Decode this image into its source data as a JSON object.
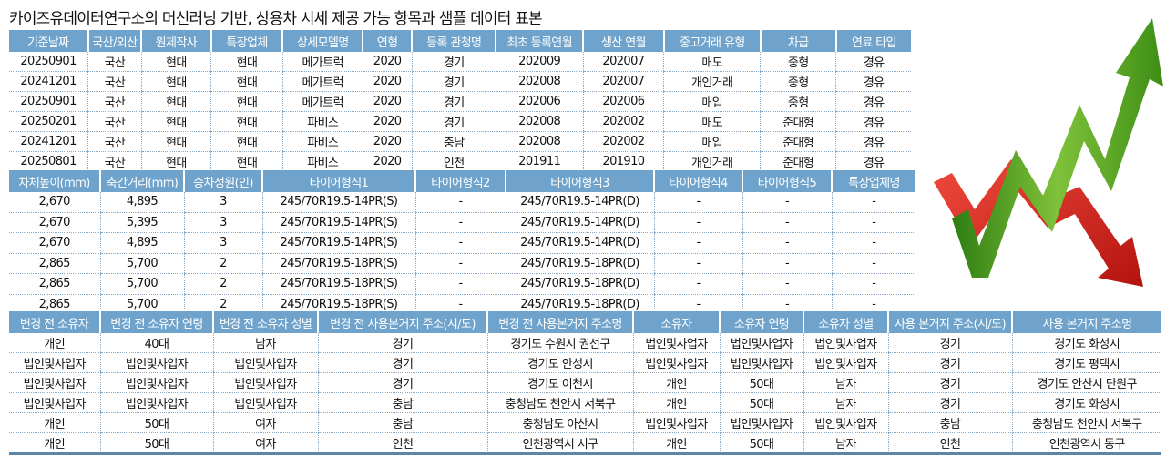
{
  "title": "카이즈유데이터연구소의 머신러닝 기반, 상용차 시세 제공 가능 항목과 샘플 데이터 표본",
  "colors": {
    "header_bg": "#6fa3cb",
    "up_arrow": "#5ca61e",
    "down_arrow": "#d9231c"
  },
  "graphic": {
    "icon": "up-down-zigzag-arrows"
  },
  "tables": [
    {
      "headers": [
        "기준날짜",
        "국산/외산",
        "원제작사",
        "특장업체",
        "상세모델명",
        "연형",
        "등록 관청명",
        "최초 등록연월",
        "생산 연월",
        "중고거래 유형",
        "차급",
        "연료 타입"
      ],
      "rows": [
        [
          "20250901",
          "국산",
          "현대",
          "현대",
          "메가트럭",
          "2020",
          "경기",
          "202009",
          "202007",
          "매도",
          "중형",
          "경유"
        ],
        [
          "20241201",
          "국산",
          "현대",
          "현대",
          "메가트럭",
          "2020",
          "경기",
          "202008",
          "202007",
          "개인거래",
          "중형",
          "경유"
        ],
        [
          "20250901",
          "국산",
          "현대",
          "현대",
          "메가트럭",
          "2020",
          "경기",
          "202006",
          "202006",
          "매입",
          "중형",
          "경유"
        ],
        [
          "20250201",
          "국산",
          "현대",
          "현대",
          "파비스",
          "2020",
          "경기",
          "202008",
          "202002",
          "매도",
          "준대형",
          "경유"
        ],
        [
          "20241201",
          "국산",
          "현대",
          "현대",
          "파비스",
          "2020",
          "충남",
          "202008",
          "202002",
          "매입",
          "준대형",
          "경유"
        ],
        [
          "20250801",
          "국산",
          "현대",
          "현대",
          "파비스",
          "2020",
          "인천",
          "201911",
          "201910",
          "개인거래",
          "준대형",
          "경유"
        ]
      ]
    },
    {
      "headers": [
        "차체높이(mm)",
        "축간거리(mm)",
        "승차정원(인)",
        "타이어형식1",
        "타이어형식2",
        "타이어형식3",
        "타이어형식4",
        "타이어형식5",
        "특장업체명"
      ],
      "rows": [
        [
          "2,670",
          "4,895",
          "3",
          "245/70R19.5-14PR(S)",
          "-",
          "245/70R19.5-14PR(D)",
          "-",
          "-",
          "-"
        ],
        [
          "2,670",
          "5,395",
          "3",
          "245/70R19.5-14PR(S)",
          "-",
          "245/70R19.5-14PR(D)",
          "-",
          "-",
          "-"
        ],
        [
          "2,670",
          "4,895",
          "3",
          "245/70R19.5-14PR(S)",
          "-",
          "245/70R19.5-14PR(D)",
          "-",
          "-",
          "-"
        ],
        [
          "2,865",
          "5,700",
          "2",
          "245/70R19.5-18PR(S)",
          "-",
          "245/70R19.5-18PR(D)",
          "-",
          "-",
          "-"
        ],
        [
          "2,865",
          "5,700",
          "2",
          "245/70R19.5-18PR(S)",
          "-",
          "245/70R19.5-18PR(D)",
          "-",
          "-",
          "-"
        ],
        [
          "2,865",
          "5,700",
          "2",
          "245/70R19.5-18PR(S)",
          "-",
          "245/70R19.5-18PR(D)",
          "-",
          "-",
          "-"
        ]
      ]
    },
    {
      "headers": [
        "변경 전 소유자",
        "변경 전 소유자 연령",
        "변경 전 소유자 성별",
        "변경 전 사용본거지 주소(시/도)",
        "변경 전 사용본거지 주소명",
        "소유자",
        "소유자 연령",
        "소유자 성별",
        "사용 본거지 주소(시/도)",
        "사용 본거지 주소명"
      ],
      "rows": [
        [
          "개인",
          "40대",
          "남자",
          "경기",
          "경기도 수원시 권선구",
          "법인및사업자",
          "법인및사업자",
          "법인및사업자",
          "경기",
          "경기도 화성시"
        ],
        [
          "법인및사업자",
          "법인및사업자",
          "법인및사업자",
          "경기",
          "경기도 안성시",
          "법인및사업자",
          "법인및사업자",
          "법인및사업자",
          "경기",
          "경기도 평택시"
        ],
        [
          "법인및사업자",
          "법인및사업자",
          "법인및사업자",
          "경기",
          "경기도 이천시",
          "개인",
          "50대",
          "남자",
          "경기",
          "경기도 안산시 단원구"
        ],
        [
          "법인및사업자",
          "법인및사업자",
          "법인및사업자",
          "충남",
          "충청남도 천안시 서북구",
          "개인",
          "50대",
          "남자",
          "경기",
          "경기도 화성시"
        ],
        [
          "개인",
          "50대",
          "여자",
          "충남",
          "충청남도 아산시",
          "법인및사업자",
          "법인및사업자",
          "법인및사업자",
          "충남",
          "충청남도 천안시 서북구"
        ],
        [
          "개인",
          "50대",
          "여자",
          "인천",
          "인천광역시 서구",
          "개인",
          "50대",
          "남자",
          "인천",
          "인천광역시 동구"
        ]
      ]
    }
  ]
}
